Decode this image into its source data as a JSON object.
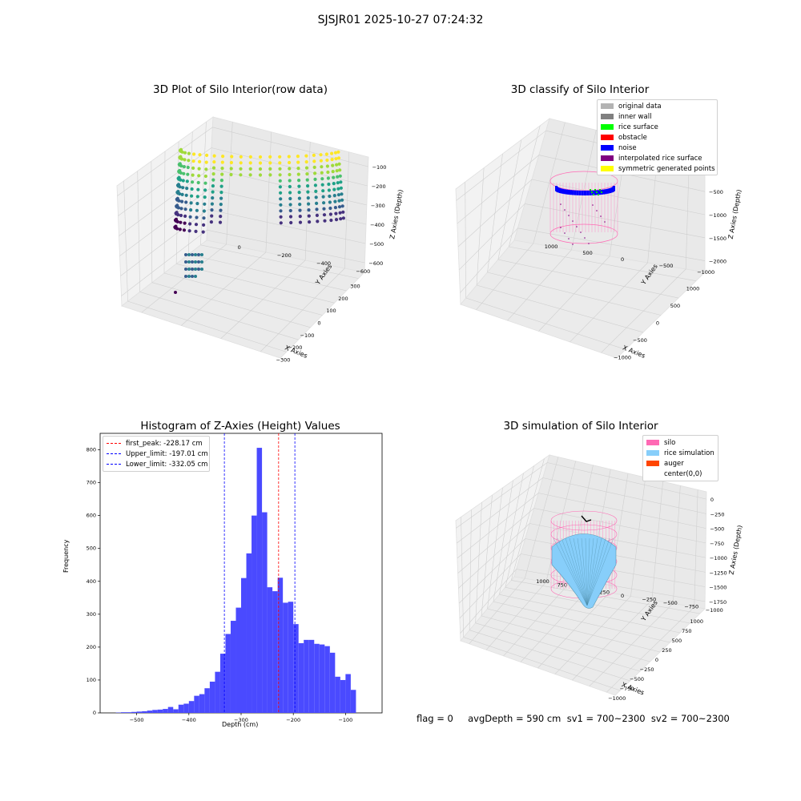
{
  "suptitle": "SJSJR01 2025-10-27 07:24:32",
  "colors": {
    "histogram_bar": "#4a4aff",
    "peak_line": "#ff0000",
    "limit_line": "#0000ff",
    "silo": "#ff69b4",
    "rice_simulation": "#87cefa",
    "auger": "#ff4500"
  },
  "chart_data": [
    {
      "type": "scatter",
      "projection": "3d",
      "title": "3D Plot of Silo Interior(row data)",
      "xlabel": "X Axies",
      "ylabel": "Y Axies",
      "zlabel": "Z Axies (Depth)",
      "x_ticks": [
        "−300",
        "−200",
        "−100",
        "0",
        "100",
        "200",
        "300"
      ],
      "y_ticks": [
        "−600",
        "−400",
        "−200",
        "0"
      ],
      "z_ticks": [
        "−600",
        "−500",
        "−400",
        "−300",
        "−200",
        "−100"
      ],
      "colormap": "viridis"
    },
    {
      "type": "scatter",
      "projection": "3d",
      "title": "3D classify of Silo Interior",
      "xlabel": "X Axies",
      "ylabel": "Y Axies",
      "zlabel": "Z Axies (Depth)",
      "x_ticks": [
        "−1000",
        "−500",
        "0",
        "500",
        "1000"
      ],
      "y_ticks": [
        "−1000",
        "−500",
        "0",
        "500",
        "1000"
      ],
      "z_ticks": [
        "−2000",
        "−1500",
        "−1000",
        "−500",
        "0"
      ],
      "legend_position": "top-right",
      "legend": [
        {
          "label": "original data",
          "color": "#b3b3b3"
        },
        {
          "label": "inner wall",
          "color": "#808080"
        },
        {
          "label": "rice surface",
          "color": "#00ff00"
        },
        {
          "label": "obstacle",
          "color": "#ff0000"
        },
        {
          "label": "noise",
          "color": "#0000ff"
        },
        {
          "label": "interpolated rice surface",
          "color": "#800080"
        },
        {
          "label": "symmetric generated points",
          "color": "#ffff00"
        }
      ]
    },
    {
      "type": "bar",
      "title": "Histogram of Z-Axies (Height) Values",
      "xlabel": "Depth (cm)",
      "ylabel": "Frequency",
      "x_ticks": [
        -500,
        -400,
        -300,
        -200,
        -100
      ],
      "y_ticks": [
        0,
        100,
        200,
        300,
        400,
        500,
        600,
        700,
        800
      ],
      "xlim": [
        -570,
        -30
      ],
      "ylim": [
        0,
        850
      ],
      "bin_start": -540,
      "bin_width": 10,
      "values": [
        1,
        2,
        2,
        3,
        4,
        5,
        7,
        9,
        10,
        12,
        18,
        11,
        25,
        28,
        36,
        52,
        57,
        75,
        95,
        125,
        180,
        240,
        280,
        320,
        410,
        485,
        600,
        806,
        610,
        382,
        370,
        411,
        335,
        338,
        270,
        212,
        222,
        222,
        210,
        208,
        203,
        183,
        110,
        100,
        118,
        70
      ],
      "vlines": [
        {
          "label": "first_peak: -228.17 cm",
          "x": -228.17,
          "kind": "peak"
        },
        {
          "label": "Upper_limit: -197.01 cm",
          "x": -197.01,
          "kind": "limit"
        },
        {
          "label": "Lower_limit: -332.05 cm",
          "x": -332.05,
          "kind": "limit"
        }
      ],
      "legend_position": "top-left"
    },
    {
      "type": "surface",
      "projection": "3d",
      "title": "3D simulation of Silo Interior",
      "xlabel": "X Axies",
      "ylabel": "Y Axies",
      "zlabel": "Z Axies (Depth)",
      "x_ticks": [
        "−1000",
        "−750",
        "−500",
        "−250",
        "0",
        "250",
        "500",
        "750",
        "1000"
      ],
      "y_ticks": [
        "−1000",
        "−750",
        "−500",
        "−250",
        "0",
        "250",
        "500",
        "750",
        "1000"
      ],
      "z_ticks": [
        "−1750",
        "−1500",
        "−1250",
        "−1000",
        "−750",
        "−500",
        "−250",
        "0"
      ],
      "legend_position": "top-right",
      "legend": [
        {
          "label": "silo",
          "color": "#ff69b4"
        },
        {
          "label": "rice simulation",
          "color": "#87cefa"
        },
        {
          "label": "auger",
          "color": "#ff4500"
        },
        {
          "label": "center(0,0)",
          "color": "#ffffff"
        }
      ]
    }
  ],
  "footer": "flag = 0     avgDepth = 590 cm  sv1 = 700~2300  sv2 = 700~2300"
}
